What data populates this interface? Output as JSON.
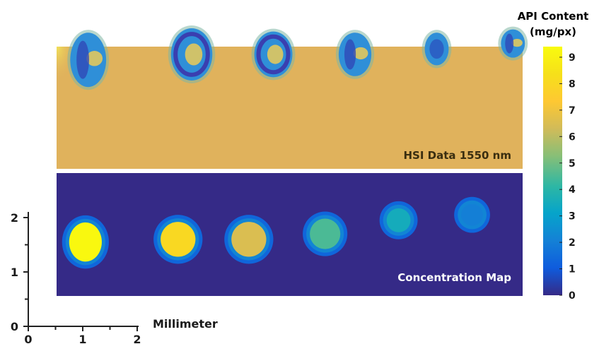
{
  "chart_data": {
    "type": "heatmap",
    "panels": [
      {
        "label": "HSI Data 1550 nm",
        "background": "#e0b25c",
        "spots": [
          {
            "x_mm": 1.1,
            "y_mm": 4.9,
            "shape": "arc",
            "rx_mm": 0.33,
            "ry_mm": 0.5
          },
          {
            "x_mm": 3.0,
            "y_mm": 5.0,
            "shape": "ring",
            "rx_mm": 0.38,
            "ry_mm": 0.48
          },
          {
            "x_mm": 4.5,
            "y_mm": 5.0,
            "shape": "ring",
            "rx_mm": 0.35,
            "ry_mm": 0.42
          },
          {
            "x_mm": 6.0,
            "y_mm": 5.0,
            "shape": "arc",
            "rx_mm": 0.3,
            "ry_mm": 0.4
          },
          {
            "x_mm": 7.5,
            "y_mm": 5.1,
            "shape": "blob",
            "rx_mm": 0.22,
            "ry_mm": 0.3
          },
          {
            "x_mm": 8.9,
            "y_mm": 5.2,
            "shape": "arc",
            "rx_mm": 0.22,
            "ry_mm": 0.26
          }
        ]
      },
      {
        "label": "Concentration Map",
        "background_value": 0,
        "spots": [
          {
            "x_mm": 1.05,
            "y_mm": 1.55,
            "rx_mm": 0.3,
            "ry_mm": 0.36,
            "value": 9.3
          },
          {
            "x_mm": 2.75,
            "y_mm": 1.6,
            "rx_mm": 0.32,
            "ry_mm": 0.32,
            "value": 8.0
          },
          {
            "x_mm": 4.05,
            "y_mm": 1.6,
            "rx_mm": 0.32,
            "ry_mm": 0.32,
            "value": 6.5
          },
          {
            "x_mm": 5.45,
            "y_mm": 1.7,
            "rx_mm": 0.28,
            "ry_mm": 0.28,
            "value": 4.5
          },
          {
            "x_mm": 6.8,
            "y_mm": 1.95,
            "rx_mm": 0.22,
            "ry_mm": 0.22,
            "value": 3.5
          },
          {
            "x_mm": 8.15,
            "y_mm": 2.05,
            "rx_mm": 0.2,
            "ry_mm": 0.2,
            "value": 2.0
          }
        ]
      }
    ],
    "colorbar": {
      "title_line1": "API Content",
      "title_line2": "(mg/px)",
      "min": 0,
      "max": 9.4,
      "ticks": [
        "0",
        "1",
        "2",
        "3",
        "4",
        "5",
        "6",
        "7",
        "8",
        "9"
      ],
      "colormap": "parula"
    },
    "scale_axis": {
      "xlabel": "Millimeter",
      "x_ticks": [
        "0",
        "1",
        "2"
      ],
      "y_ticks": [
        "0",
        "1",
        "2"
      ]
    }
  }
}
